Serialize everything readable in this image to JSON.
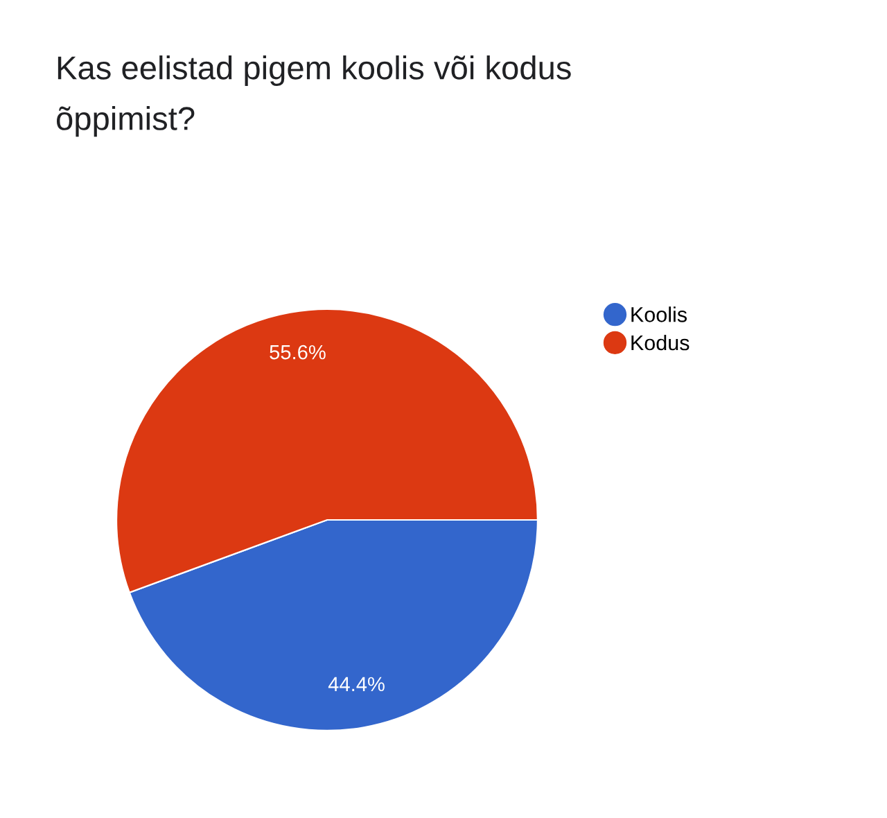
{
  "chart_data": {
    "type": "pie",
    "title": "Kas eelistad pigem koolis või kodus\nõppimist?",
    "categories": [
      "Koolis",
      "Kodus"
    ],
    "values": [
      44.4,
      55.6
    ],
    "colors": [
      "#3366cc",
      "#dc3912"
    ],
    "value_labels": [
      "44.4%",
      "55.6%"
    ],
    "legend": "right"
  }
}
